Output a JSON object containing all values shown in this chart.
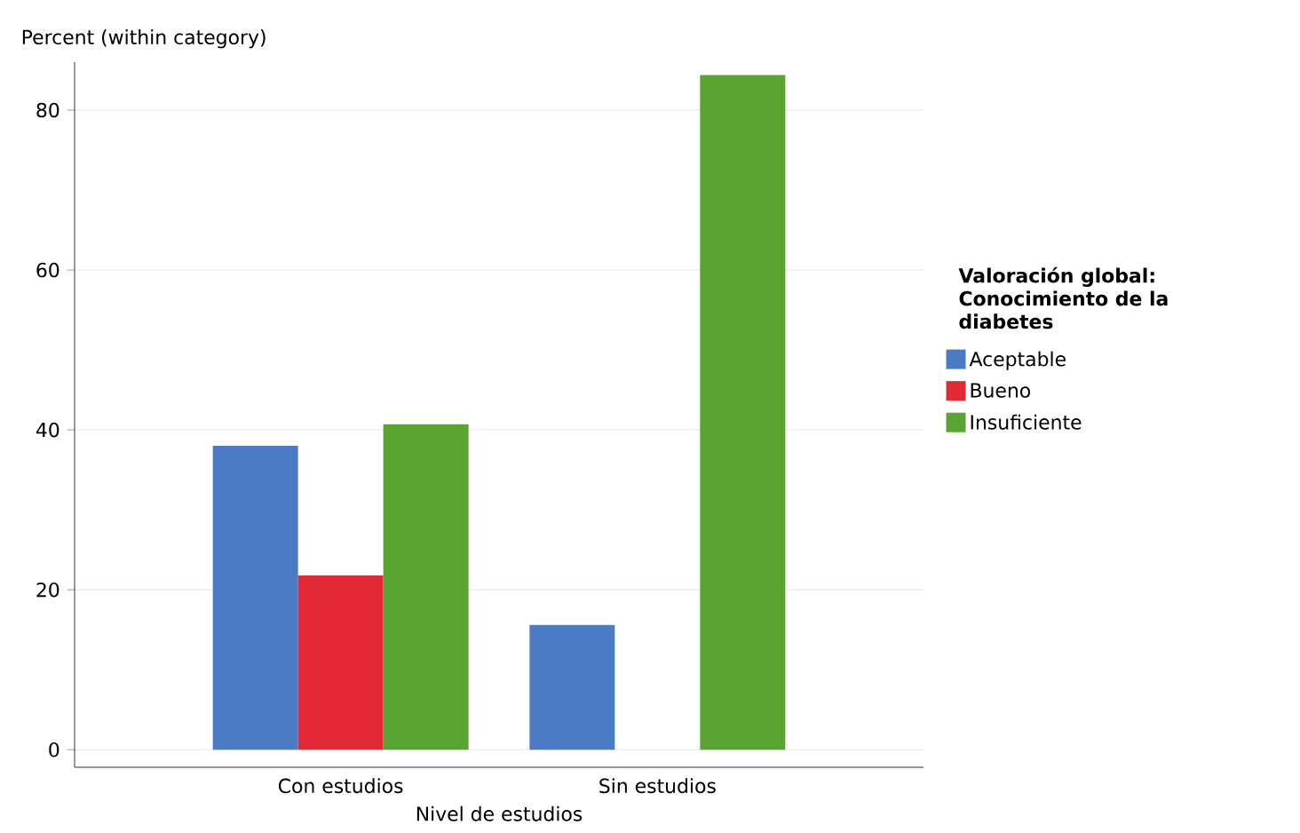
{
  "chart_data": {
    "type": "bar",
    "xlabel": "Nivel de estudios",
    "ylabel": "Percent (within category)",
    "legend_title": "Valoración global: Conocimiento de la diabetes",
    "categories": [
      "Con estudios",
      "Sin estudios"
    ],
    "series": [
      {
        "name": "Aceptable",
        "color": "#4a7bc4",
        "values": [
          38.0,
          15.6
        ]
      },
      {
        "name": "Bueno",
        "color": "#e12a36",
        "values": [
          21.8,
          0
        ]
      },
      {
        "name": "Insuficiente",
        "color": "#5aa532",
        "values": [
          40.7,
          84.4
        ]
      }
    ],
    "ylim": [
      -2.2,
      86
    ],
    "yticks": [
      0,
      20,
      40,
      60,
      80
    ],
    "grid": "y",
    "legend": "right"
  }
}
